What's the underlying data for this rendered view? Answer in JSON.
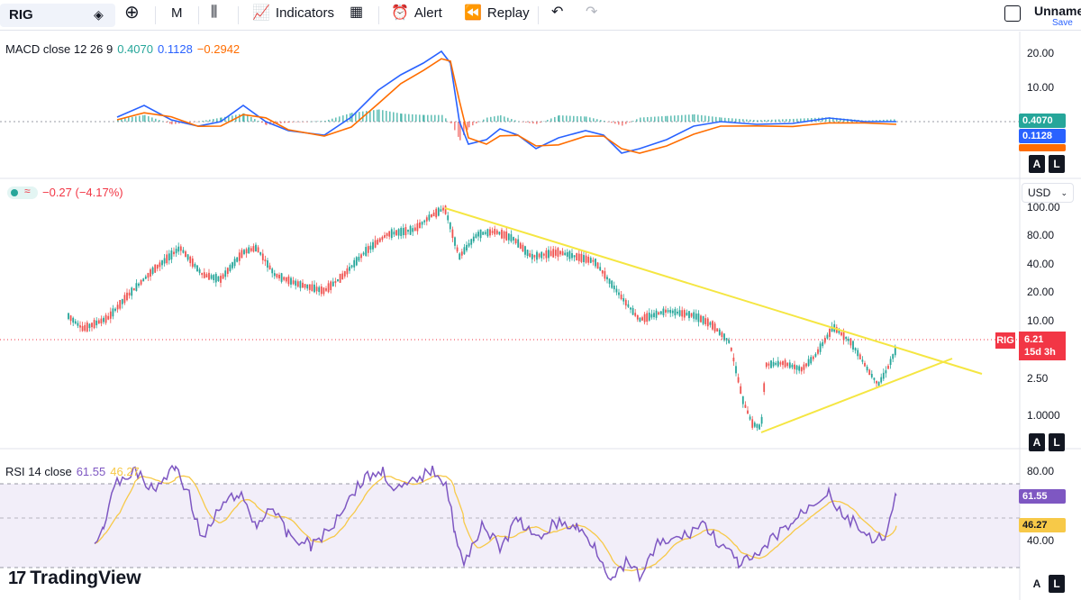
{
  "toolbar": {
    "symbol": "RIG",
    "interval": "M",
    "indicators_label": "Indicators",
    "alert_label": "Alert",
    "replay_label": "Replay",
    "layout_name": "Unname",
    "save_label": "Save"
  },
  "macd": {
    "label": "MACD close 12 26 9",
    "v1": "0.4070",
    "v2": "0.1128",
    "v3": "−0.2942",
    "colors": {
      "v1": "#26a69a",
      "v2": "#2962ff",
      "v3": "#ff6d00"
    },
    "axis": [
      "20.00",
      "10.00"
    ],
    "badges": [
      "0.4070",
      "0.1128"
    ]
  },
  "price": {
    "change": "−0.27 (−4.17%)",
    "currency": "USD",
    "axis": [
      "100.00",
      "80.00",
      "40.00",
      "20.00",
      "10.00",
      "2.50",
      "1.0000"
    ],
    "tag": "RIG",
    "last": "6.21",
    "countdown": "15d 3h"
  },
  "rsi": {
    "label": "RSI 14 close",
    "v1": "61.55",
    "v2": "46.27",
    "axis": [
      "80.00",
      "40.00"
    ],
    "badges": [
      "61.55",
      "46.27"
    ]
  },
  "scale_buttons": {
    "a": "A",
    "l": "L"
  },
  "brand": "TradingView"
}
